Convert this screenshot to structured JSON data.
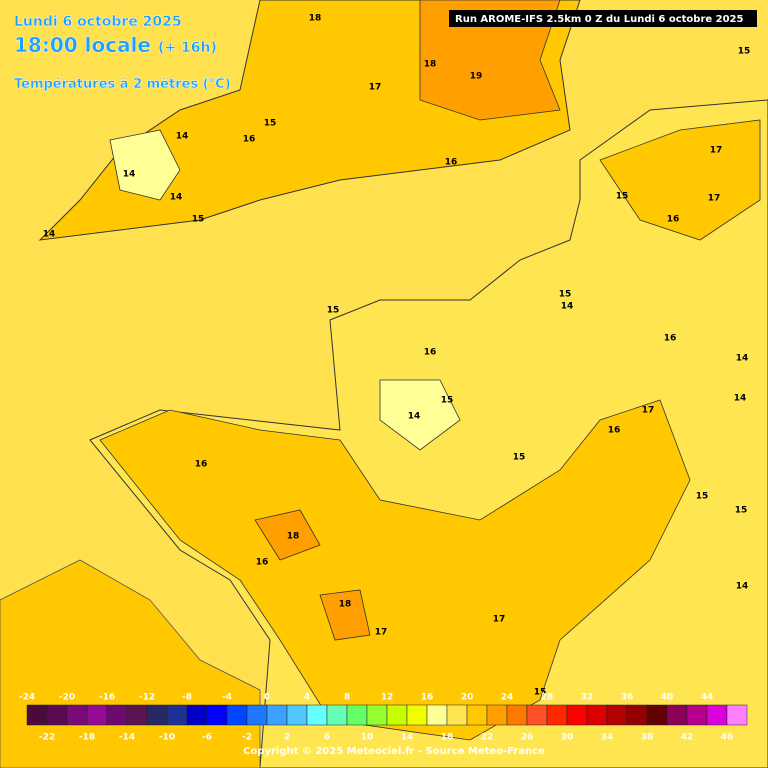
{
  "header": {
    "date": "Lundi 6 octobre 2025",
    "time": "18:00 locale",
    "lead": "(+ 16h)",
    "variable": "Températures à 2 mètres (°C)",
    "run": "Run AROME-IFS 2.5km 0 Z du Lundi 6 octobre 2025"
  },
  "contour_labels": [
    18,
    18,
    19,
    17,
    15,
    14,
    16,
    16,
    14,
    14,
    15,
    14,
    15,
    17,
    17,
    15,
    16,
    15,
    14,
    15,
    16,
    16,
    14,
    15,
    14,
    14,
    17,
    16,
    15,
    16,
    15,
    15,
    18,
    16,
    14,
    18,
    17,
    17,
    15
  ],
  "colorbar": {
    "top_ticks": [
      -24,
      -20,
      -16,
      -12,
      -8,
      -4,
      0,
      4,
      8,
      12,
      16,
      20,
      24,
      28,
      32,
      36,
      40,
      44
    ],
    "bottom_ticks": [
      -22,
      -18,
      -14,
      -10,
      -6,
      -2,
      2,
      6,
      10,
      14,
      18,
      22,
      26,
      30,
      34,
      38,
      42,
      46
    ],
    "colors": [
      "#4b0a3c",
      "#5a0a50",
      "#7a0a7a",
      "#960a96",
      "#6e0a6e",
      "#5a1450",
      "#282864",
      "#1e3296",
      "#0000c8",
      "#0000ff",
      "#0046ff",
      "#1e78ff",
      "#3ca0ff",
      "#50c8ff",
      "#64ffff",
      "#64ffb4",
      "#64ff64",
      "#96ff32",
      "#c8ff00",
      "#f0ff00",
      "#ffff96",
      "#ffe650",
      "#ffc800",
      "#ffa000",
      "#ff7800",
      "#ff5028",
      "#ff2800",
      "#ff0000",
      "#dc0000",
      "#b40000",
      "#960000",
      "#640000",
      "#8c005a",
      "#b4008c",
      "#dc00dc",
      "#ff80ff"
    ]
  },
  "footer": {
    "copyright": "Copyright © 2025 Meteociel.fr - Source Meteo-France"
  }
}
